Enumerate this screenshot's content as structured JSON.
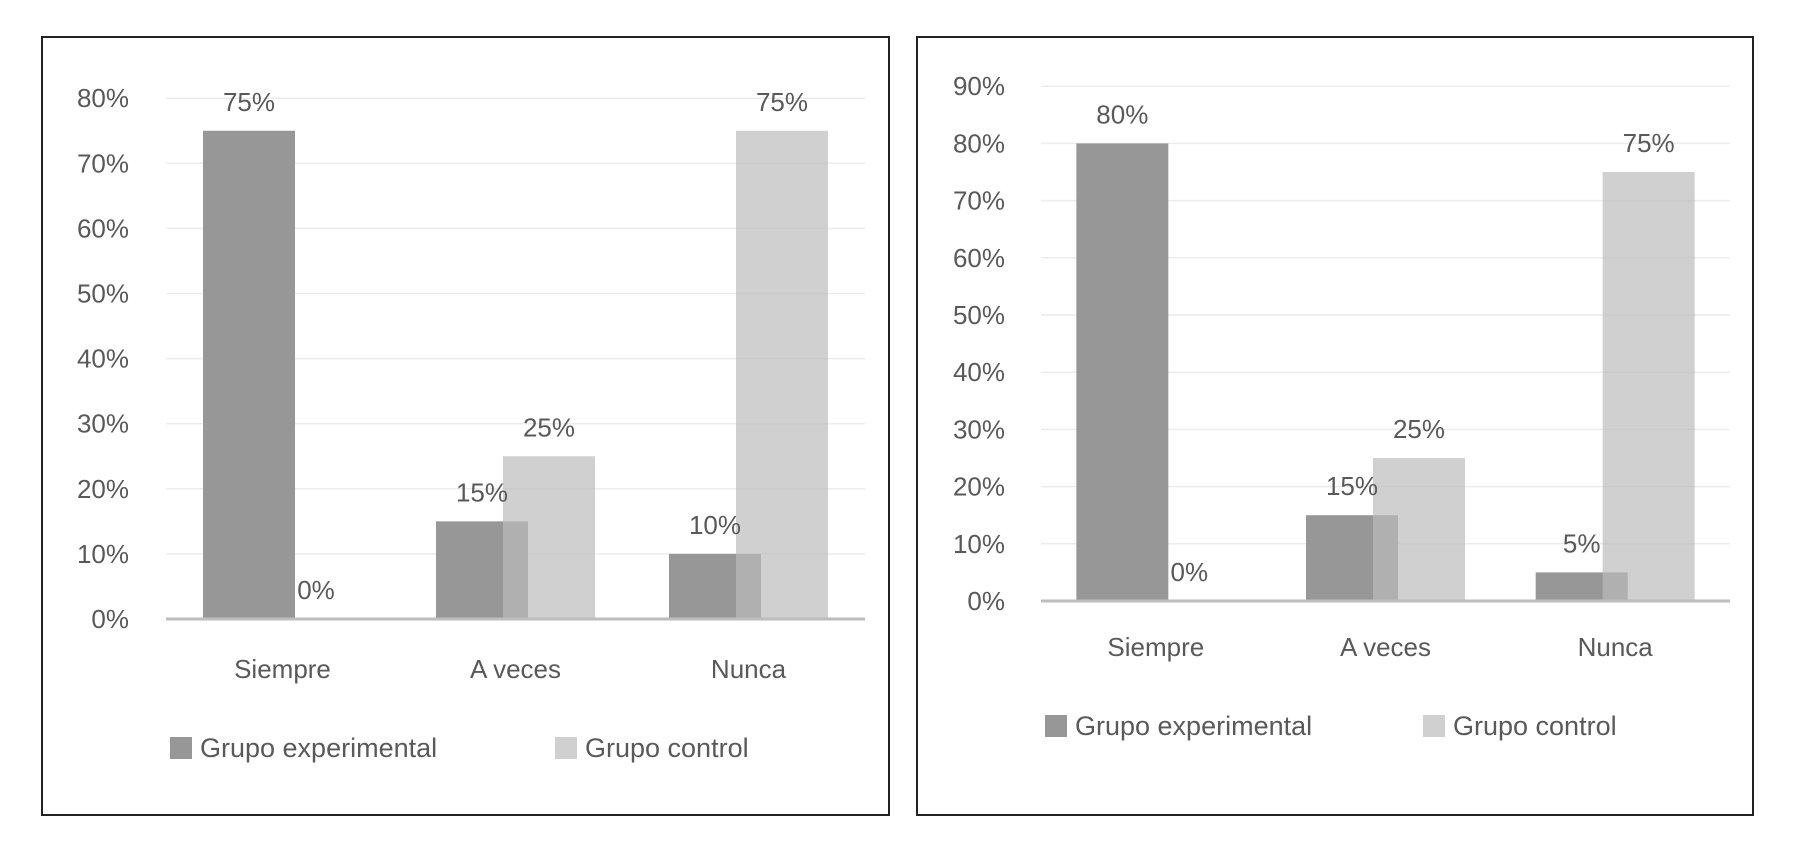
{
  "chart_data": [
    {
      "type": "bar",
      "title": "",
      "categories": [
        "Siempre",
        "A veces",
        "Nunca"
      ],
      "series": [
        {
          "name": "Grupo experimental",
          "values": [
            75,
            15,
            10
          ],
          "labels": [
            "75%",
            "15%",
            "10%"
          ]
        },
        {
          "name": "Grupo control",
          "values": [
            0,
            25,
            75
          ],
          "labels": [
            "0%",
            "25%",
            "75%"
          ]
        }
      ],
      "yticks": [
        "0%",
        "10%",
        "20%",
        "30%",
        "40%",
        "50%",
        "60%",
        "70%",
        "80%"
      ],
      "ylim": [
        0,
        80
      ],
      "xlabel": "",
      "ylabel": "",
      "grid": true,
      "legend": "bottom"
    },
    {
      "type": "bar",
      "title": "",
      "categories": [
        "Siempre",
        "A veces",
        "Nunca"
      ],
      "series": [
        {
          "name": "Grupo experimental",
          "values": [
            80,
            15,
            5
          ],
          "labels": [
            "80%",
            "15%",
            "5%"
          ]
        },
        {
          "name": "Grupo control",
          "values": [
            0,
            25,
            75
          ],
          "labels": [
            "0%",
            "25%",
            "75%"
          ]
        }
      ],
      "yticks": [
        "0%",
        "10%",
        "20%",
        "30%",
        "40%",
        "50%",
        "60%",
        "70%",
        "80%",
        "90%"
      ],
      "ylim": [
        0,
        90
      ],
      "xlabel": "",
      "ylabel": "",
      "grid": true,
      "legend": "bottom"
    }
  ],
  "colors": {
    "experimental": "#979797",
    "control": "#d0d0d0"
  }
}
